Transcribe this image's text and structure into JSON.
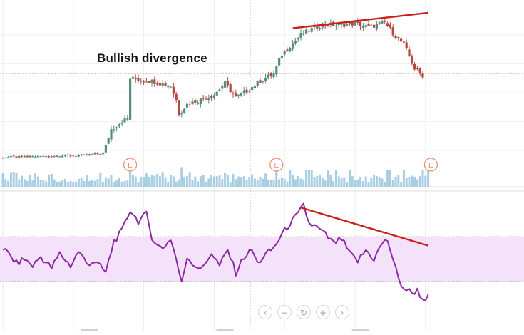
{
  "annotation": {
    "text": "Bullish divergence"
  },
  "colors": {
    "up_candle": "#5b8c7a",
    "down_candle": "#b5473f",
    "volume": "#9ec9e0",
    "rsi_line": "#8b2aa3",
    "rsi_band": "#f3e2fa",
    "trendline": "#c8201c",
    "reference_line": "#c9907a",
    "earnings_marker": "#e98b6d"
  },
  "earnings_markers": [
    {
      "label": "E",
      "day": 47
    },
    {
      "label": "E",
      "day": 101
    },
    {
      "label": "E",
      "day": 158
    }
  ],
  "price_reference_level": 1.0,
  "navigation_buttons": [
    {
      "icon": "chevron-left-icon",
      "glyph": "‹"
    },
    {
      "icon": "zoom-out-icon",
      "glyph": "−"
    },
    {
      "icon": "reset-icon",
      "glyph": "↻"
    },
    {
      "icon": "zoom-in-icon",
      "glyph": "+"
    },
    {
      "icon": "chevron-right-icon",
      "glyph": "›"
    }
  ],
  "chart_data": [
    {
      "type": "candlestick",
      "title": "",
      "xlabel": "",
      "ylabel": "",
      "ylim": [
        0,
        1.6
      ],
      "xlim": [
        0,
        160
      ],
      "grid": true,
      "price_keypoints": [
        [
          0,
          0.13
        ],
        [
          30,
          0.15
        ],
        [
          37,
          0.17
        ],
        [
          40,
          0.42
        ],
        [
          44,
          0.5
        ],
        [
          46,
          0.53
        ],
        [
          47,
          0.95
        ],
        [
          55,
          0.92
        ],
        [
          62,
          0.87
        ],
        [
          64,
          0.72
        ],
        [
          65,
          0.58
        ],
        [
          68,
          0.68
        ],
        [
          78,
          0.78
        ],
        [
          82,
          0.9
        ],
        [
          86,
          0.75
        ],
        [
          90,
          0.82
        ],
        [
          96,
          0.94
        ],
        [
          100,
          1.0
        ],
        [
          103,
          1.2
        ],
        [
          110,
          1.4
        ],
        [
          114,
          1.46
        ],
        [
          118,
          1.51
        ],
        [
          124,
          1.5
        ],
        [
          130,
          1.52
        ],
        [
          135,
          1.48
        ],
        [
          141,
          1.53
        ],
        [
          144,
          1.42
        ],
        [
          148,
          1.3
        ],
        [
          152,
          1.05
        ],
        [
          155,
          0.98
        ]
      ],
      "volume_ylim": [
        0,
        1.0
      ],
      "trendline": {
        "x": [
          107,
          157
        ],
        "y": [
          1.47,
          1.63
        ]
      }
    },
    {
      "type": "line",
      "title": "",
      "xlabel": "",
      "ylabel": "",
      "ylim": [
        0,
        100
      ],
      "band": [
        30,
        70
      ],
      "series_keypoints": [
        [
          0,
          60
        ],
        [
          3,
          52
        ],
        [
          5,
          46
        ],
        [
          8,
          50
        ],
        [
          11,
          44
        ],
        [
          14,
          52
        ],
        [
          18,
          42
        ],
        [
          21,
          55
        ],
        [
          25,
          44
        ],
        [
          28,
          57
        ],
        [
          31,
          46
        ],
        [
          34,
          48
        ],
        [
          38,
          38
        ],
        [
          41,
          66
        ],
        [
          44,
          75
        ],
        [
          47,
          94
        ],
        [
          50,
          84
        ],
        [
          53,
          90
        ],
        [
          55,
          70
        ],
        [
          57,
          62
        ],
        [
          59,
          60
        ],
        [
          62,
          68
        ],
        [
          64,
          50
        ],
        [
          66,
          28
        ],
        [
          68,
          52
        ],
        [
          71,
          44
        ],
        [
          74,
          42
        ],
        [
          77,
          56
        ],
        [
          80,
          44
        ],
        [
          83,
          58
        ],
        [
          86,
          38
        ],
        [
          89,
          52
        ],
        [
          92,
          58
        ],
        [
          94,
          46
        ],
        [
          97,
          54
        ],
        [
          100,
          60
        ],
        [
          103,
          72
        ],
        [
          106,
          82
        ],
        [
          109,
          90
        ],
        [
          111,
          98
        ],
        [
          113,
          82
        ],
        [
          116,
          78
        ],
        [
          119,
          72
        ],
        [
          122,
          64
        ],
        [
          125,
          68
        ],
        [
          128,
          55
        ],
        [
          131,
          48
        ],
        [
          134,
          58
        ],
        [
          137,
          50
        ],
        [
          140,
          64
        ],
        [
          142,
          67
        ],
        [
          144,
          50
        ],
        [
          146,
          32
        ],
        [
          148,
          24
        ],
        [
          151,
          20
        ],
        [
          153,
          22
        ],
        [
          155,
          14
        ],
        [
          157,
          16
        ]
      ],
      "trendline": {
        "x": [
          110,
          157
        ],
        "y": [
          96,
          62
        ]
      }
    }
  ]
}
